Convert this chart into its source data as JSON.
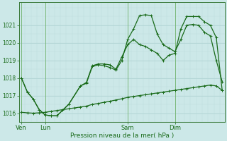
{
  "bg_color": "#cce8e8",
  "grid_color_major": "#aad0d0",
  "grid_color_minor": "#bcdcdc",
  "line_color": "#1a6b1a",
  "xlabel": "Pression niveau de la mer( hPa )",
  "ylim": [
    1015.5,
    1022.3
  ],
  "yticks": [
    1016,
    1017,
    1018,
    1019,
    1020,
    1021
  ],
  "day_labels": [
    "Ven",
    "Lun",
    "Sam",
    "Dim"
  ],
  "day_positions": [
    0,
    2,
    9,
    13
  ],
  "xlim": [
    -0.2,
    17.2
  ],
  "line1_x": [
    0,
    0.5,
    1,
    1.5,
    2,
    2.5,
    3,
    3.5,
    4,
    4.5,
    5,
    5.5,
    6,
    6.5,
    7,
    7.5,
    8,
    8.5,
    9,
    9.5,
    10,
    10.5,
    11,
    11.5,
    12,
    12.5,
    13,
    13.5,
    14,
    14.5,
    15,
    15.5,
    16,
    16.5,
    17
  ],
  "line1_y": [
    1016.05,
    1016.02,
    1016.0,
    1016.02,
    1016.05,
    1016.1,
    1016.15,
    1016.2,
    1016.25,
    1016.3,
    1016.35,
    1016.4,
    1016.5,
    1016.55,
    1016.62,
    1016.68,
    1016.75,
    1016.82,
    1016.9,
    1016.95,
    1017.0,
    1017.05,
    1017.1,
    1017.15,
    1017.2,
    1017.25,
    1017.3,
    1017.35,
    1017.4,
    1017.45,
    1017.5,
    1017.55,
    1017.6,
    1017.55,
    1017.3
  ],
  "line2_x": [
    0,
    0.5,
    1,
    1.5,
    2,
    2.5,
    3,
    4,
    5,
    5.5,
    6,
    6.5,
    7,
    7.5,
    8,
    8.5,
    9,
    9.5,
    10,
    10.5,
    11,
    11.5,
    12,
    12.5,
    13,
    13.5,
    14,
    14.5,
    15,
    15.5,
    16,
    16.5,
    17
  ],
  "line2_y": [
    1018.0,
    1017.2,
    1016.8,
    1016.2,
    1015.9,
    1015.85,
    1015.85,
    1016.5,
    1017.55,
    1017.7,
    1018.65,
    1018.75,
    1018.7,
    1018.6,
    1018.45,
    1019.0,
    1020.2,
    1020.8,
    1021.55,
    1021.6,
    1021.55,
    1020.5,
    1019.9,
    1019.7,
    1019.5,
    1020.2,
    1021.0,
    1021.05,
    1021.0,
    1020.6,
    1020.4,
    1019.0,
    1017.8
  ],
  "line3_x": [
    0,
    0.5,
    1,
    1.5,
    2,
    2.5,
    3,
    4,
    5,
    5.5,
    6,
    6.5,
    7,
    7.5,
    8,
    8.5,
    9,
    9.5,
    10,
    10.5,
    11,
    11.5,
    12,
    12.5,
    13,
    13.5,
    14,
    14.5,
    15,
    15.5,
    16,
    16.5,
    17
  ],
  "line3_y": [
    1018.0,
    1017.2,
    1016.8,
    1016.2,
    1015.9,
    1015.85,
    1015.85,
    1016.5,
    1017.55,
    1017.75,
    1018.7,
    1018.8,
    1018.8,
    1018.75,
    1018.5,
    1019.2,
    1019.9,
    1020.2,
    1019.9,
    1019.8,
    1019.6,
    1019.4,
    1019.0,
    1019.3,
    1019.4,
    1020.8,
    1021.5,
    1021.5,
    1021.5,
    1021.2,
    1021.0,
    1020.3,
    1017.3
  ]
}
